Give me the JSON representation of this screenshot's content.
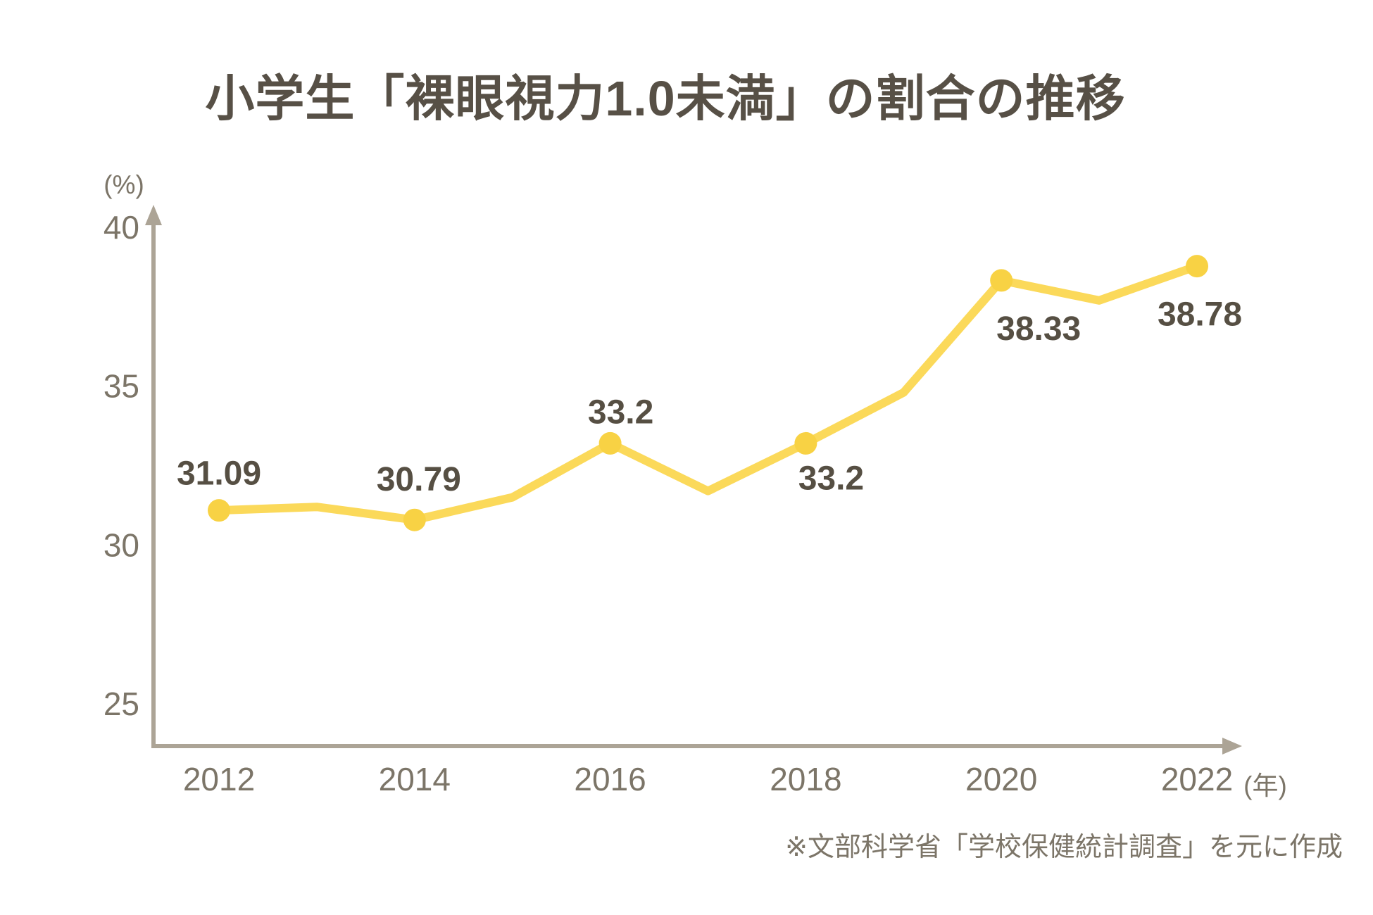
{
  "title": "小学生「裸眼視力1.0未満」の割合の推移",
  "footer_note": "※文部科学省「学校保健統計調査」を元に作成",
  "chart_data": {
    "type": "line",
    "title": "小学生「裸眼視力1.0未満」の割合の推移",
    "x": [
      2012,
      2013,
      2014,
      2015,
      2016,
      2017,
      2018,
      2019,
      2020,
      2021,
      2022
    ],
    "series": [
      {
        "name": "裸眼視力1.0未満の割合",
        "values": [
          31.09,
          31.2,
          30.79,
          31.5,
          33.2,
          31.7,
          33.2,
          34.8,
          38.33,
          37.7,
          38.78
        ]
      }
    ],
    "labeled_points": [
      {
        "x": 2012,
        "label": "31.09"
      },
      {
        "x": 2014,
        "label": "30.79"
      },
      {
        "x": 2016,
        "label": "33.2"
      },
      {
        "x": 2018,
        "label": "33.2"
      },
      {
        "x": 2020,
        "label": "38.33"
      },
      {
        "x": 2022,
        "label": "38.78"
      }
    ],
    "x_ticks": [
      "2012",
      "2014",
      "2016",
      "2018",
      "2020",
      "2022"
    ],
    "y_ticks": [
      "25",
      "30",
      "35",
      "40"
    ],
    "x_axis_unit": "(年)",
    "y_axis_unit": "(%)",
    "ylim": [
      25,
      40
    ],
    "grid": false,
    "legend": false,
    "line_color": "#FBD95A",
    "marker_color": "#F8D244",
    "axis_color": "#ACA496",
    "tick_color": "#7C7568",
    "data_label_color": "#564F43"
  }
}
